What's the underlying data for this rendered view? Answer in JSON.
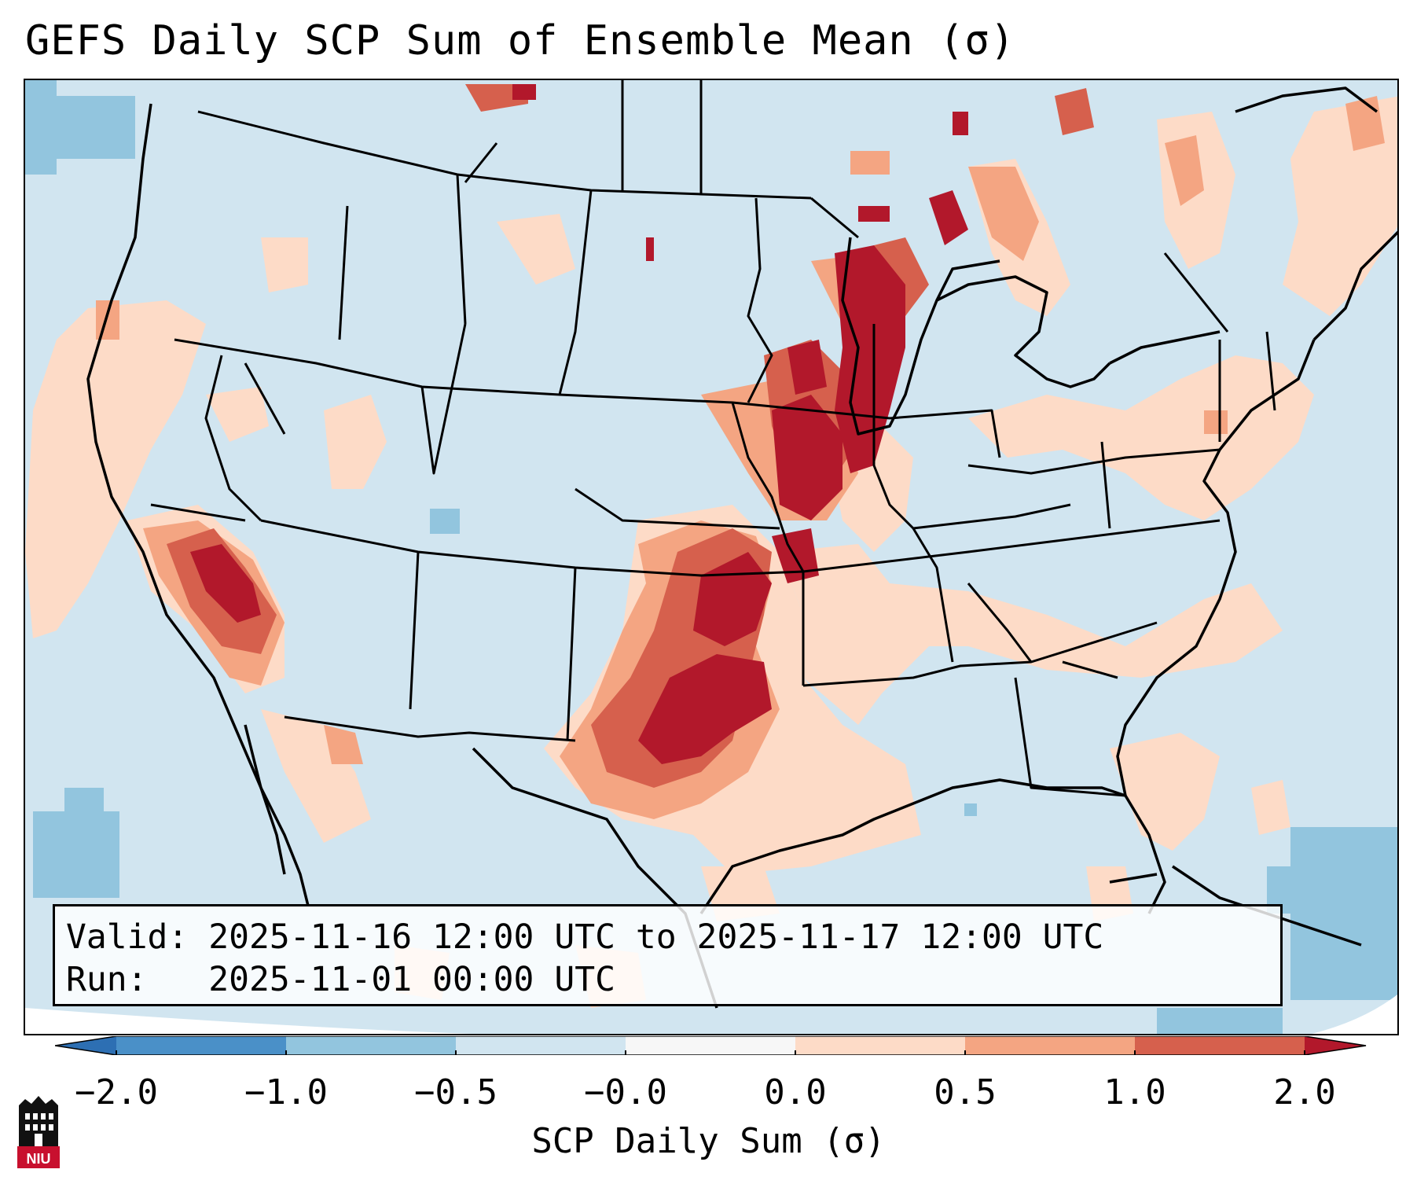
{
  "title": "GEFS Daily SCP Sum of Ensemble Mean (σ)",
  "info": {
    "valid_label": "Valid:",
    "valid_value": "2025-11-16 12:00 UTC to 2025-11-17 12:00 UTC",
    "run_label": "Run:",
    "run_value": "2025-11-01 00:00 UTC"
  },
  "colorbar": {
    "label": "SCP Daily Sum (σ)",
    "ticks": [
      "−2.0",
      "−1.0",
      "−0.5",
      "−0.0",
      "0.0",
      "0.5",
      "1.0",
      "2.0"
    ],
    "bins": [
      {
        "range": "< -2.0",
        "color": "#2d6fb3"
      },
      {
        "range": "-2.0 to -1.0",
        "color": "#4a90c8"
      },
      {
        "range": "-1.0 to -0.5",
        "color": "#92c5de"
      },
      {
        "range": "-0.5 to -0.0",
        "color": "#d1e5f0"
      },
      {
        "range": "-0.0 to 0.0",
        "color": "#f7f7f7"
      },
      {
        "range": "0.0 to 0.5",
        "color": "#fddbc7"
      },
      {
        "range": "0.5 to 1.0",
        "color": "#f4a582"
      },
      {
        "range": "1.0 to 2.0",
        "color": "#d6604d"
      },
      {
        "range": "> 2.0",
        "color": "#b2182b"
      }
    ]
  },
  "logo": {
    "text": "NIU",
    "icon": "niu-logo-icon"
  }
}
